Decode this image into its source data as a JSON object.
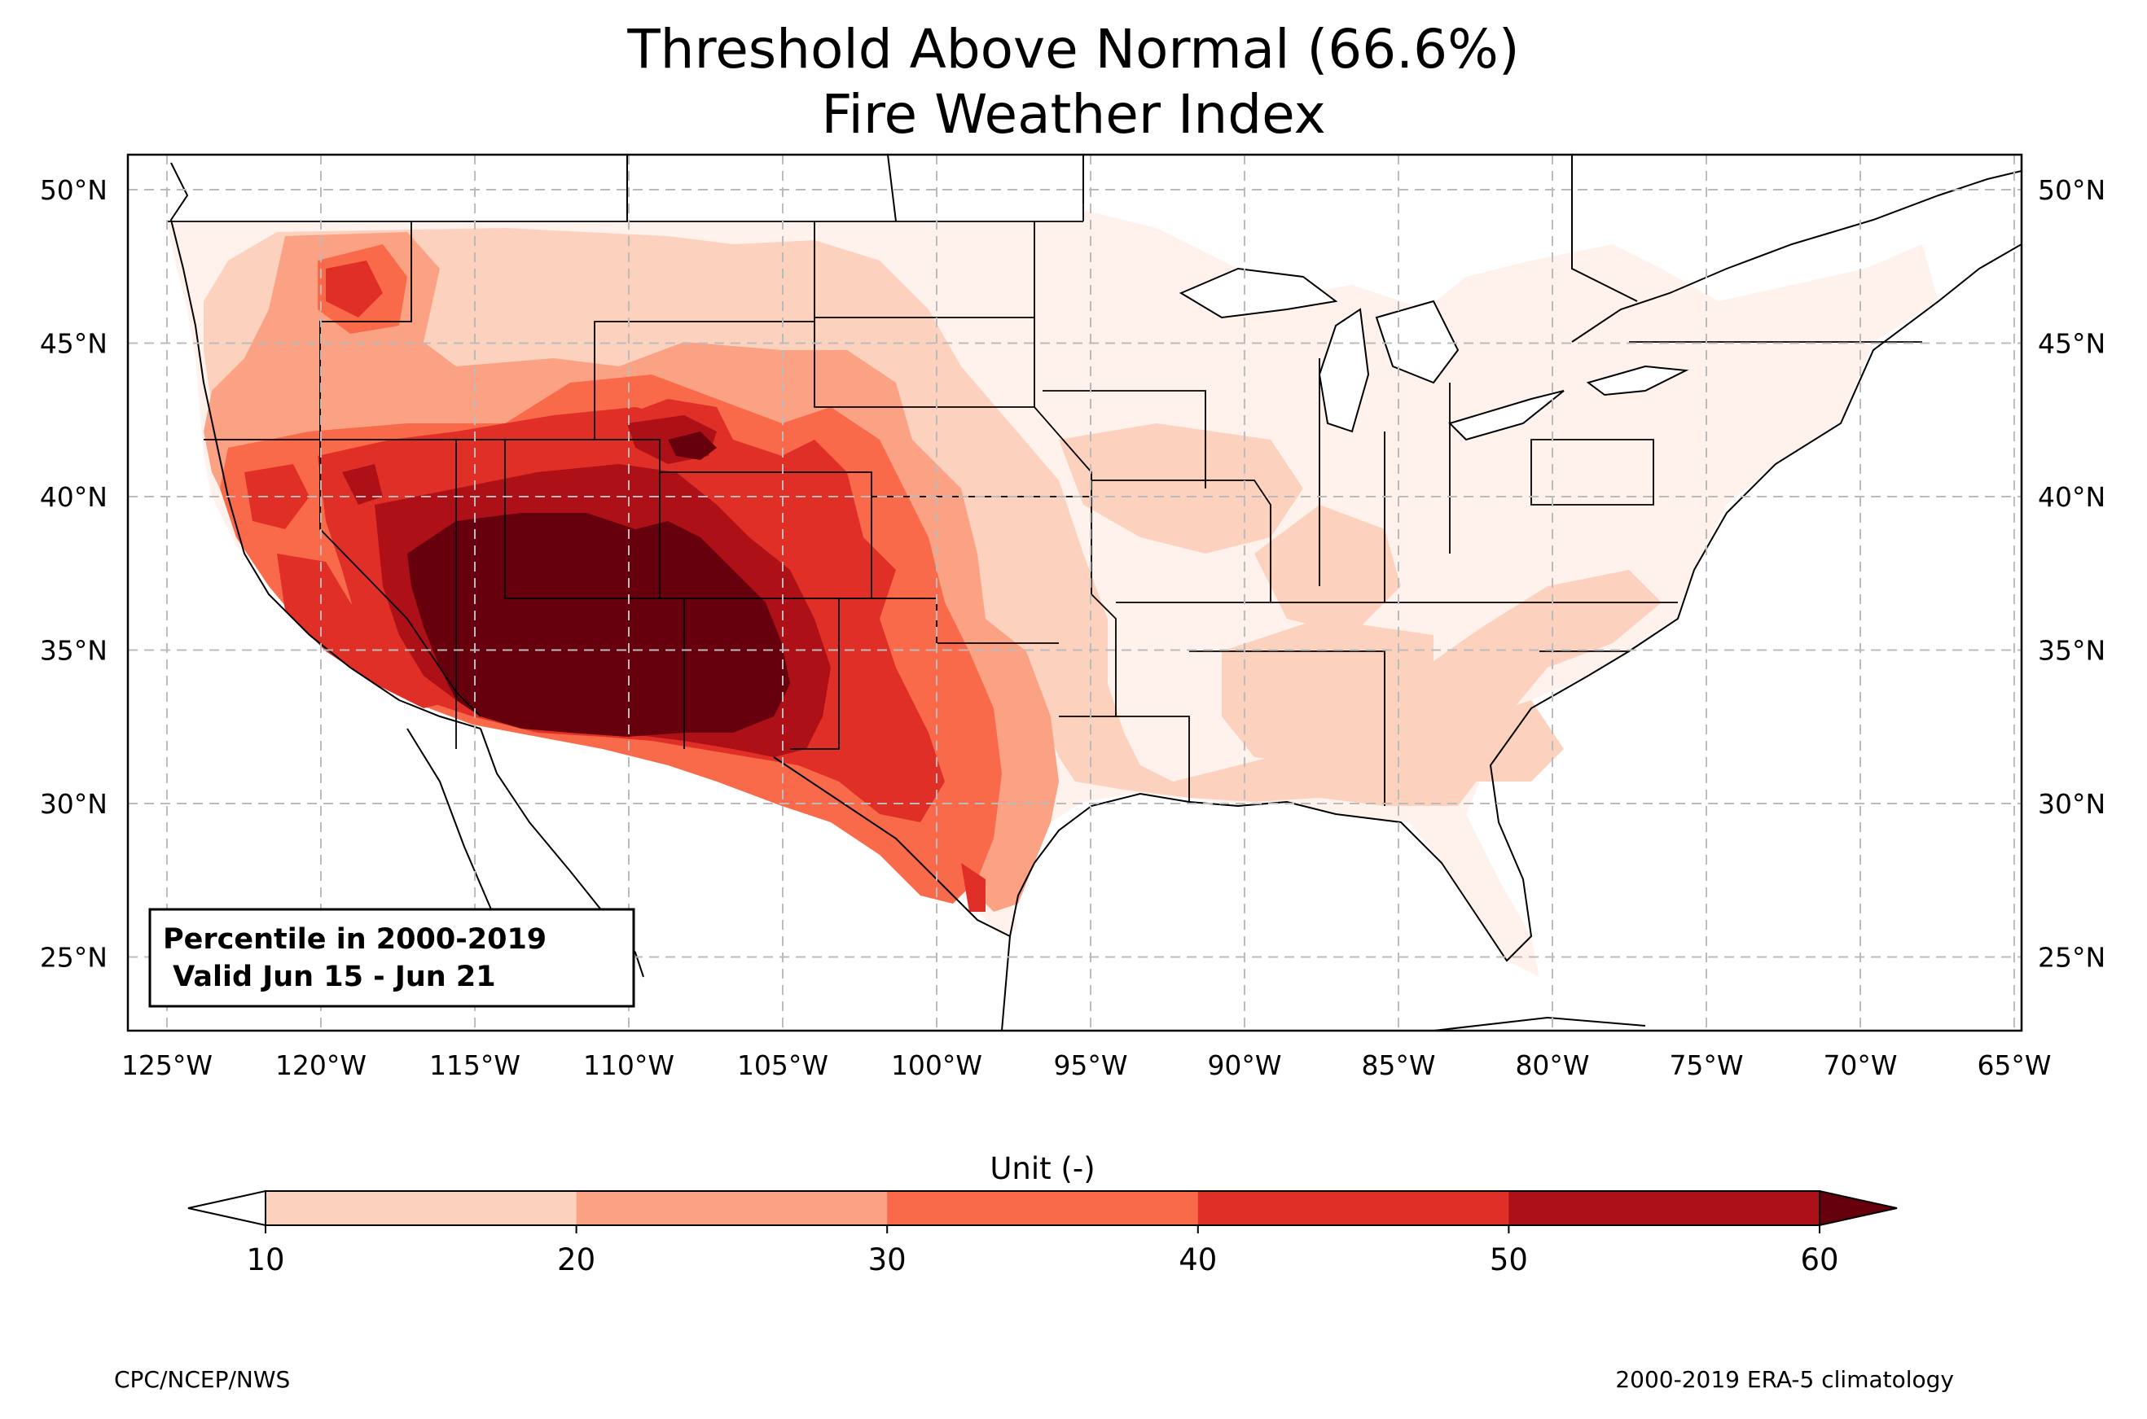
{
  "title": {
    "line1": "Threshold Above Normal (66.6%)",
    "line2": "Fire Weather Index"
  },
  "info_box": {
    "line1": "Percentile in 2000-2019",
    "line2": " Valid Jun 15 - Jun 21"
  },
  "axes": {
    "lon_ticks": [
      "125°W",
      "120°W",
      "115°W",
      "110°W",
      "105°W",
      "100°W",
      "95°W",
      "90°W",
      "85°W",
      "80°W",
      "75°W",
      "70°W",
      "65°W"
    ],
    "lat_ticks": [
      "50°N",
      "45°N",
      "40°N",
      "35°N",
      "30°N",
      "25°N"
    ]
  },
  "colorbar": {
    "title": "Unit (-)",
    "tick_labels": [
      "10",
      "20",
      "30",
      "40",
      "50",
      "60"
    ],
    "colors": [
      "#fcd2bf",
      "#fca284",
      "#f96a4b",
      "#e02f26",
      "#ad1016",
      "#67000d"
    ],
    "under_color": "#ffffff",
    "extend": "both"
  },
  "footer": {
    "left": "CPC/NCEP/NWS",
    "right": "2000-2019 ERA-5 climatology"
  },
  "palette": {
    "p10": "#fff1ec",
    "p10_20": "#fcd2bf",
    "p20_30": "#fca284",
    "p30_40": "#f96a4b",
    "p40_50": "#e02f26",
    "p50_60": "#ad1016",
    "p60": "#67000d"
  }
}
